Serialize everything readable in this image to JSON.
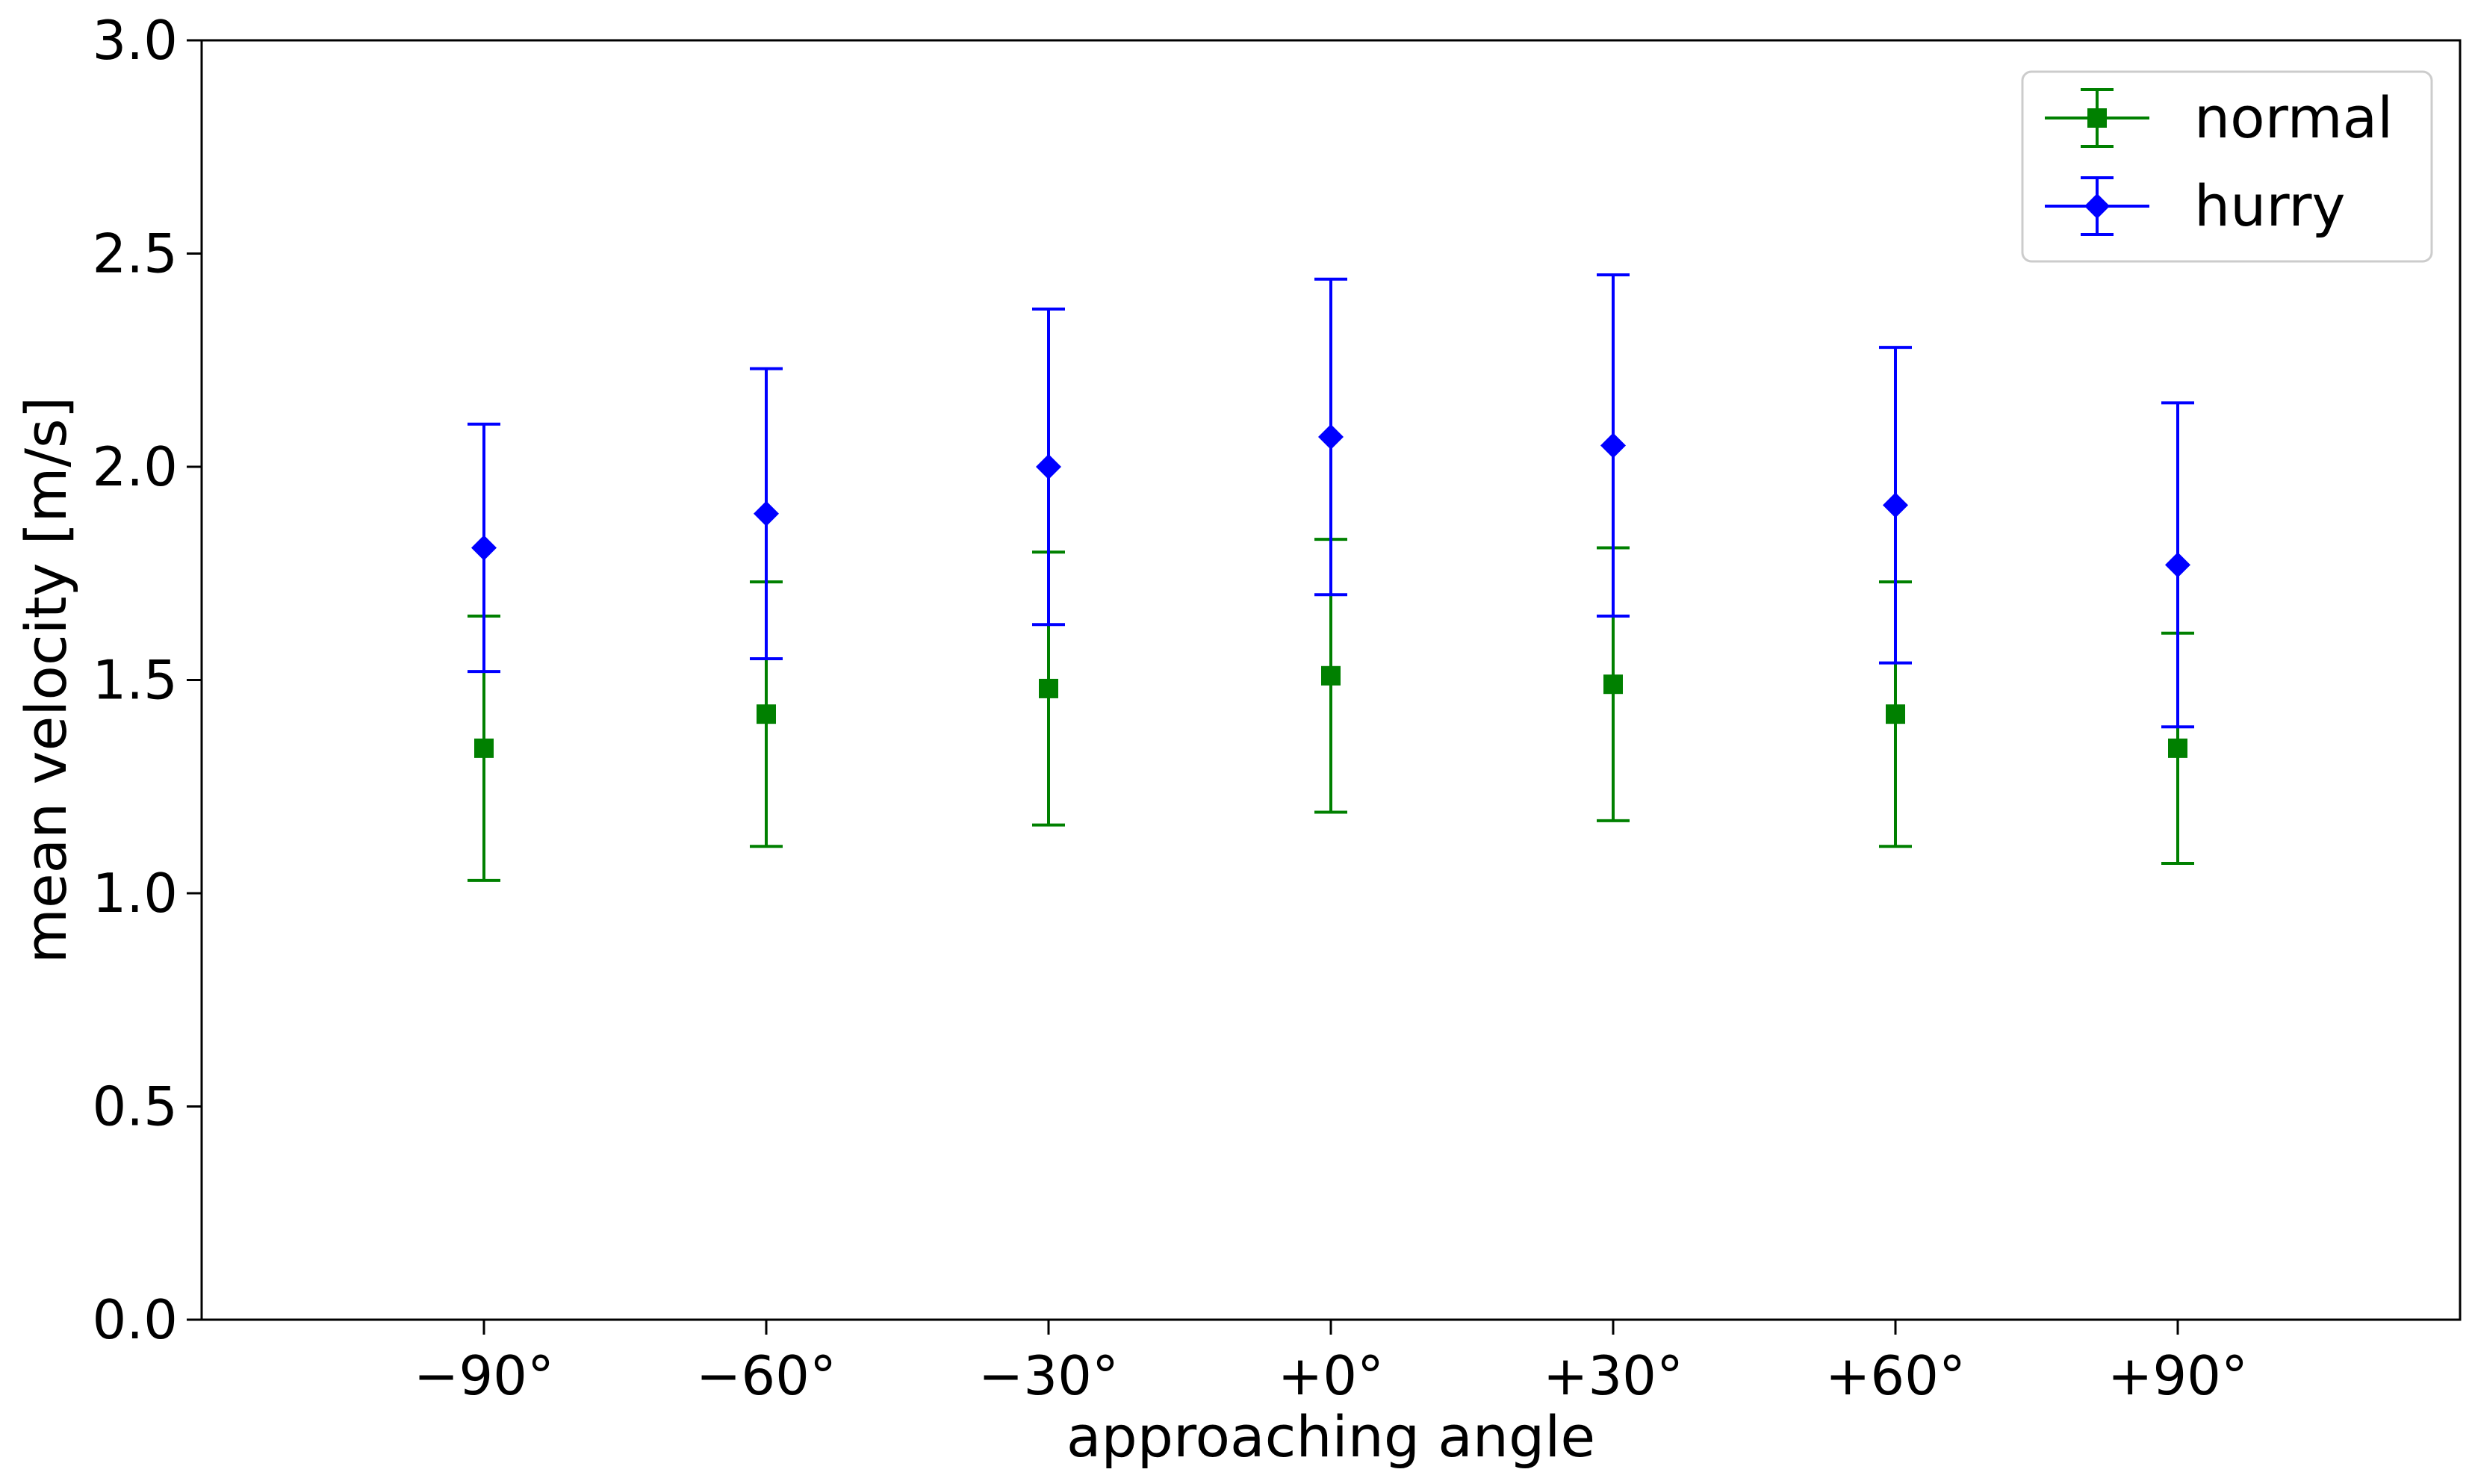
{
  "chart_data": {
    "type": "errorbar",
    "title": "",
    "xlabel": "approaching angle",
    "ylabel": "mean velocity [m/s]",
    "categories": [
      "−90°",
      "−60°",
      "−30°",
      "+0°",
      "+30°",
      "+60°",
      "+90°"
    ],
    "xlim": [
      -1,
      7
    ],
    "ylim": [
      0,
      3.0
    ],
    "yticks": [
      0.0,
      0.5,
      1.0,
      1.5,
      2.0,
      2.5,
      3.0
    ],
    "ytick_labels": [
      "0.0",
      "0.5",
      "1.0",
      "1.5",
      "2.0",
      "2.5",
      "3.0"
    ],
    "grid": false,
    "legend_position": "top-right",
    "series": [
      {
        "name": "normal",
        "color": "#008000",
        "marker": "square",
        "values": [
          1.34,
          1.42,
          1.48,
          1.51,
          1.49,
          1.42,
          1.34
        ],
        "errors": [
          0.31,
          0.31,
          0.32,
          0.32,
          0.32,
          0.31,
          0.27
        ]
      },
      {
        "name": "hurry",
        "color": "#0000ff",
        "marker": "diamond",
        "values": [
          1.81,
          1.89,
          2.0,
          2.07,
          2.05,
          1.91,
          1.77
        ],
        "errors": [
          0.29,
          0.34,
          0.37,
          0.37,
          0.4,
          0.37,
          0.38
        ]
      }
    ]
  }
}
